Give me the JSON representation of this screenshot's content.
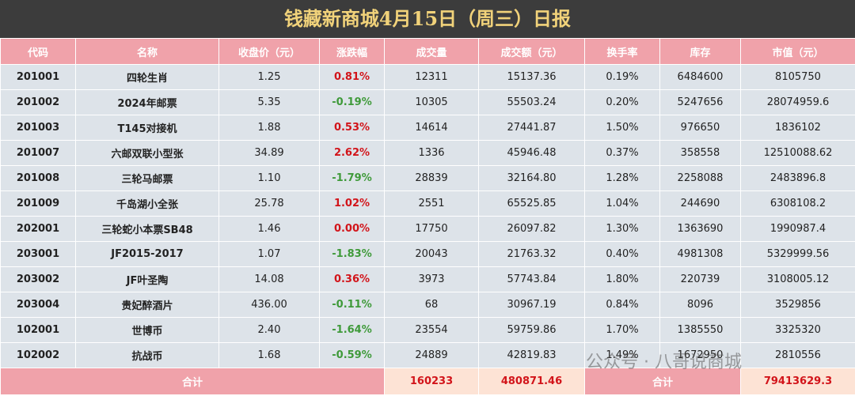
{
  "header": {
    "title": "钱藏新商城4月15日（周三）日报"
  },
  "table": {
    "columns": [
      "代码",
      "名称",
      "收盘价（元）",
      "涨跌幅",
      "成交量",
      "成交额（元）",
      "换手率",
      "库存",
      "市值（元）"
    ],
    "rows": [
      [
        "201001",
        "四轮生肖",
        "1.25",
        "0.81%",
        "12311",
        "15137.36",
        "0.19%",
        "6484600",
        "8105750"
      ],
      [
        "201002",
        "2024年邮票",
        "5.35",
        "-0.19%",
        "10305",
        "55503.24",
        "0.20%",
        "5247656",
        "28074959.6"
      ],
      [
        "201003",
        "T145对接机",
        "1.88",
        "0.53%",
        "14614",
        "27441.87",
        "1.50%",
        "976650",
        "1836102"
      ],
      [
        "201007",
        "六邮双联小型张",
        "34.89",
        "2.62%",
        "1336",
        "45946.48",
        "0.37%",
        "358558",
        "12510088.62"
      ],
      [
        "201008",
        "三轮马邮票",
        "1.10",
        "-1.79%",
        "28839",
        "32164.80",
        "1.28%",
        "2258088",
        "2483896.8"
      ],
      [
        "201009",
        "千岛湖小全张",
        "25.78",
        "1.02%",
        "2551",
        "65525.85",
        "1.04%",
        "244690",
        "6308108.2"
      ],
      [
        "202001",
        "三轮蛇小本票SB48",
        "1.46",
        "0.00%",
        "17750",
        "26097.82",
        "1.30%",
        "1363690",
        "1990987.4"
      ],
      [
        "203001",
        "JF2015-2017",
        "1.07",
        "-1.83%",
        "20043",
        "21763.32",
        "0.40%",
        "4981308",
        "5329999.56"
      ],
      [
        "203002",
        "JF叶圣陶",
        "14.08",
        "0.36%",
        "3973",
        "57743.84",
        "1.80%",
        "220739",
        "3108005.12"
      ],
      [
        "203004",
        "贵妃醉酒片",
        "436.00",
        "-0.11%",
        "68",
        "30967.19",
        "0.84%",
        "8096",
        "3529856"
      ],
      [
        "102001",
        "世博币",
        "2.40",
        "-1.64%",
        "23554",
        "59759.86",
        "1.70%",
        "1385550",
        "3325320"
      ],
      [
        "102002",
        "抗战币",
        "1.68",
        "-0.59%",
        "24889",
        "42819.83",
        "1.49%",
        "1672950",
        "2810556"
      ]
    ],
    "footer": {
      "label": "合计",
      "volume": "160233",
      "amount": "480871.46",
      "label2": "合计",
      "market_value": "79413629.3"
    }
  },
  "watermark": "公众号 · 八哥说商城"
}
